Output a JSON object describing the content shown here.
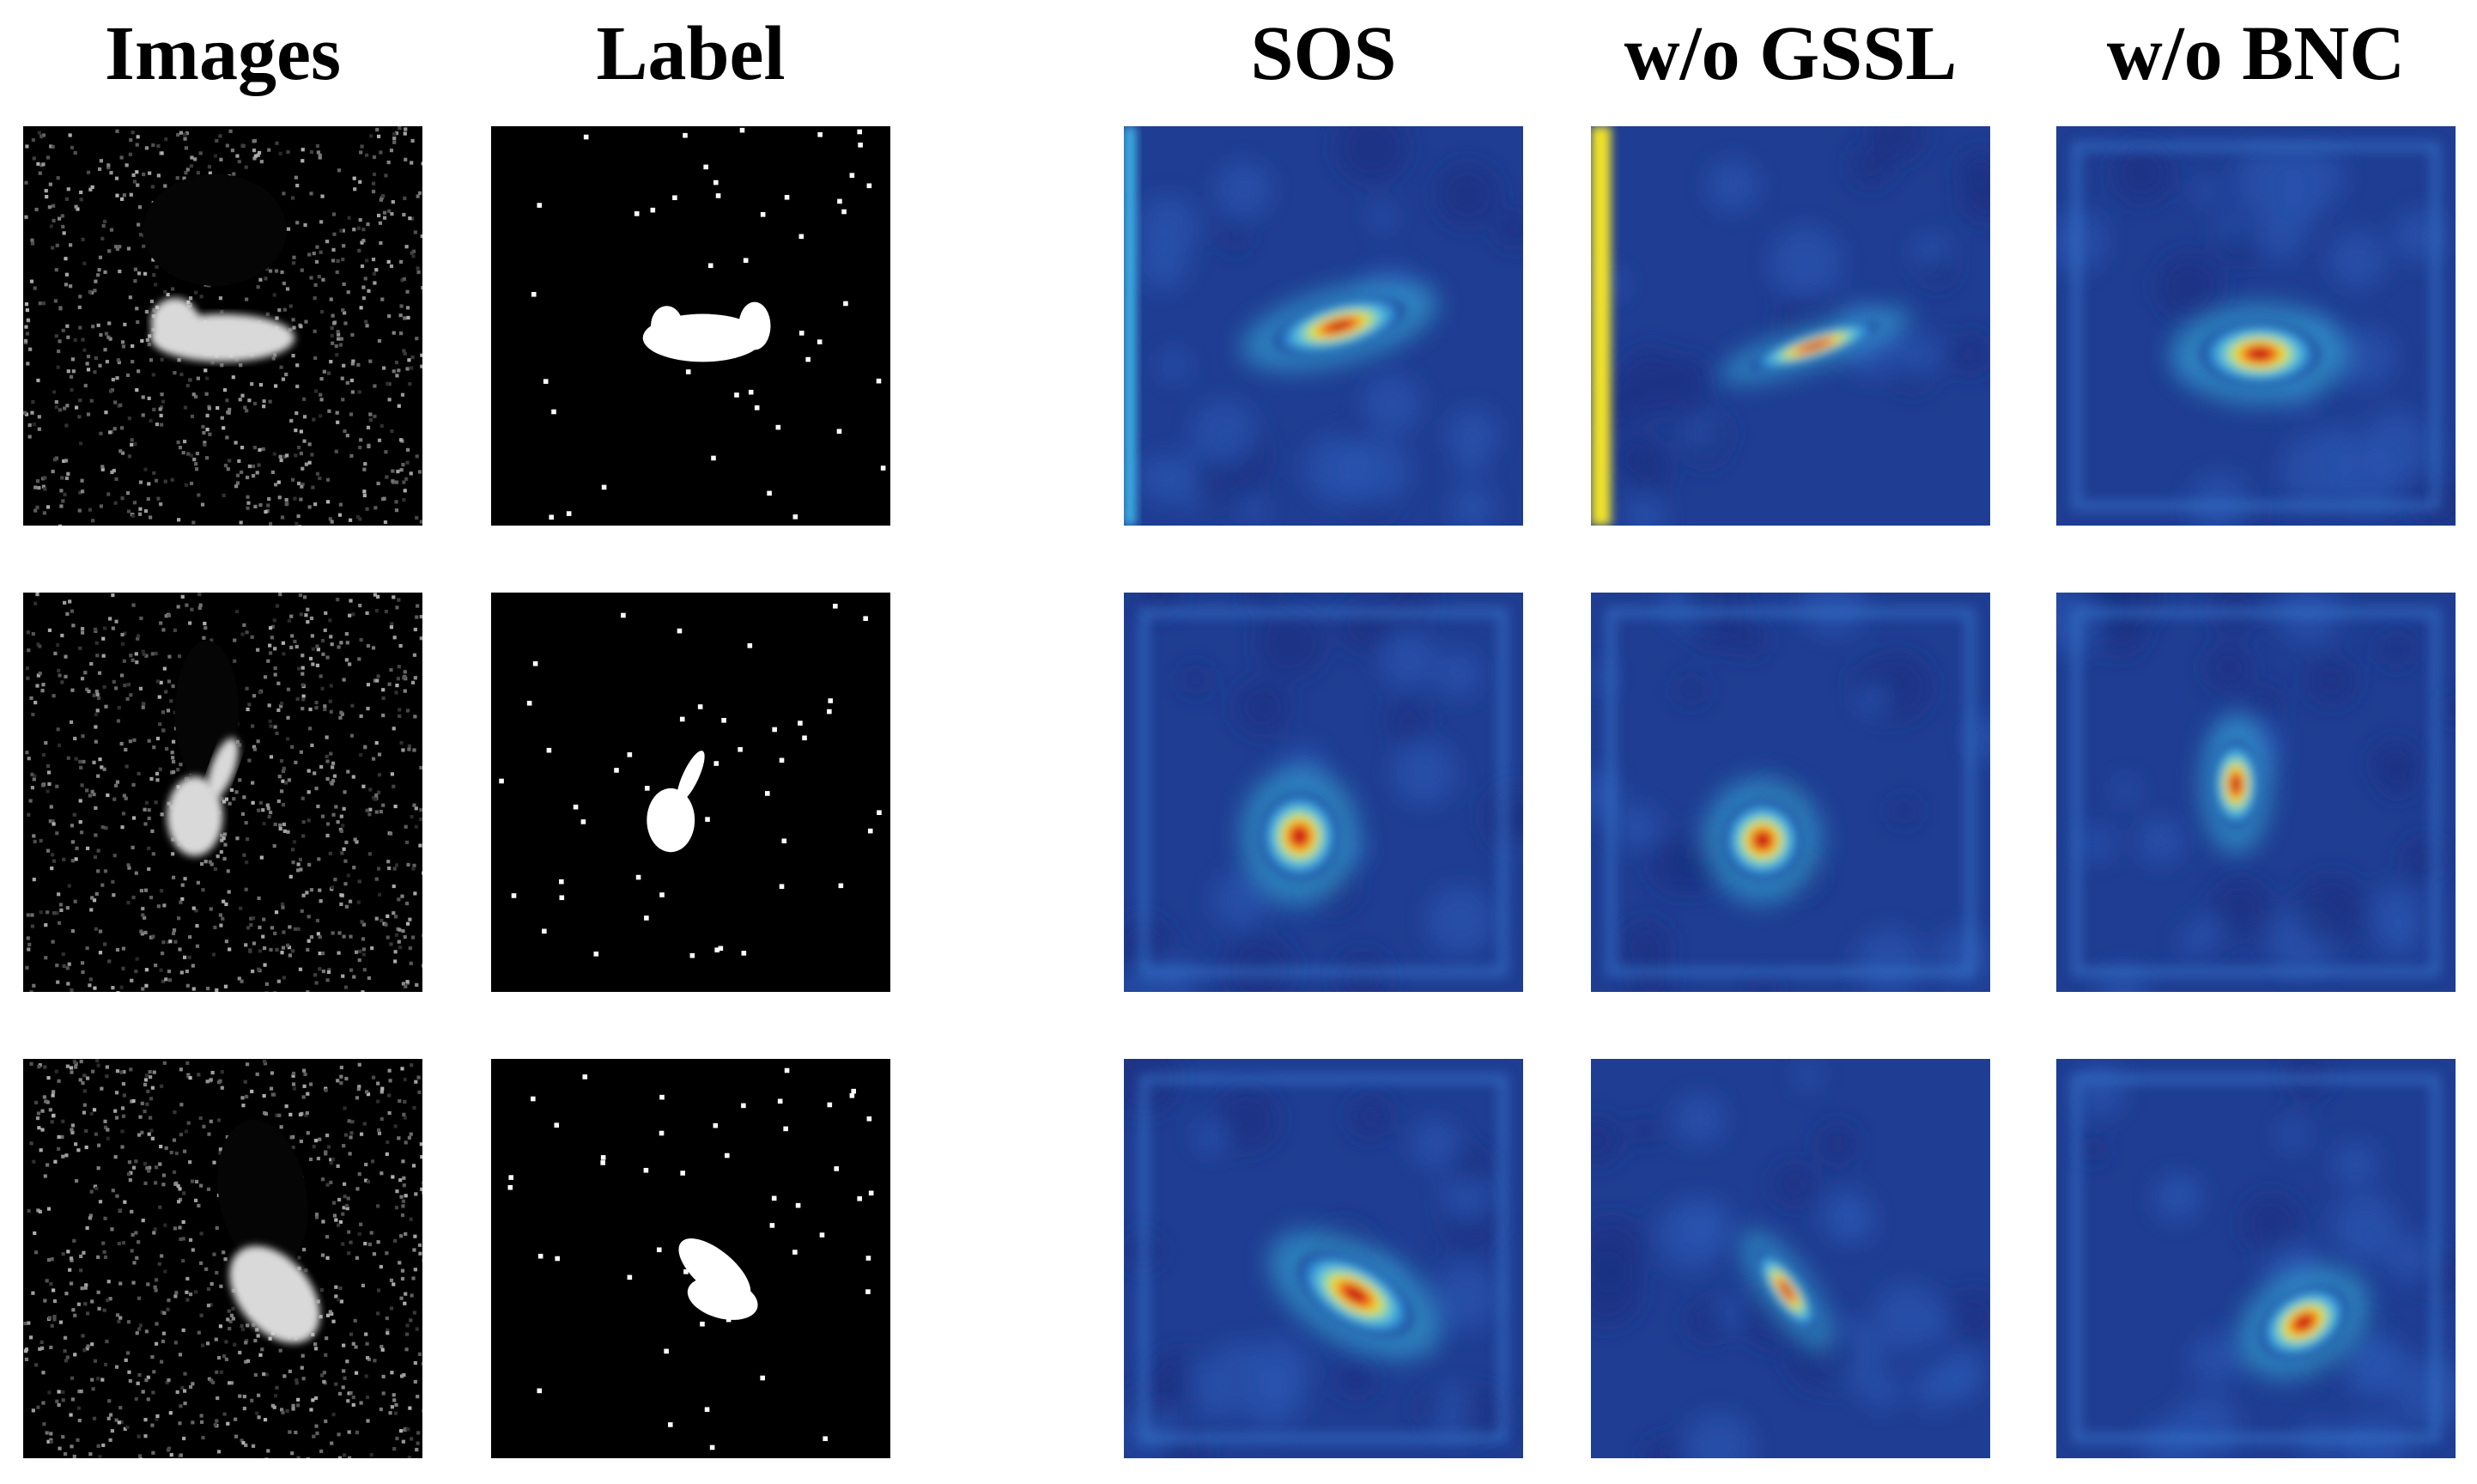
{
  "columns": [
    {
      "key": "images",
      "title": "Images"
    },
    {
      "key": "label",
      "title": "Label"
    },
    {
      "key": "sos",
      "title": "SOS"
    },
    {
      "key": "wo_gssl",
      "title": "w/o GSSL"
    },
    {
      "key": "wo_bnc",
      "title": "w/o BNC"
    }
  ],
  "rows": [
    "row-1",
    "row-2",
    "row-3"
  ],
  "colors": {
    "background": "#ffffff",
    "heatmap_low": "#1e3a8f",
    "heatmap_mid": "#2ec4e8",
    "heatmap_peak": "#b5121b",
    "sar_background": "#000000",
    "target_white": "#ffffff"
  }
}
